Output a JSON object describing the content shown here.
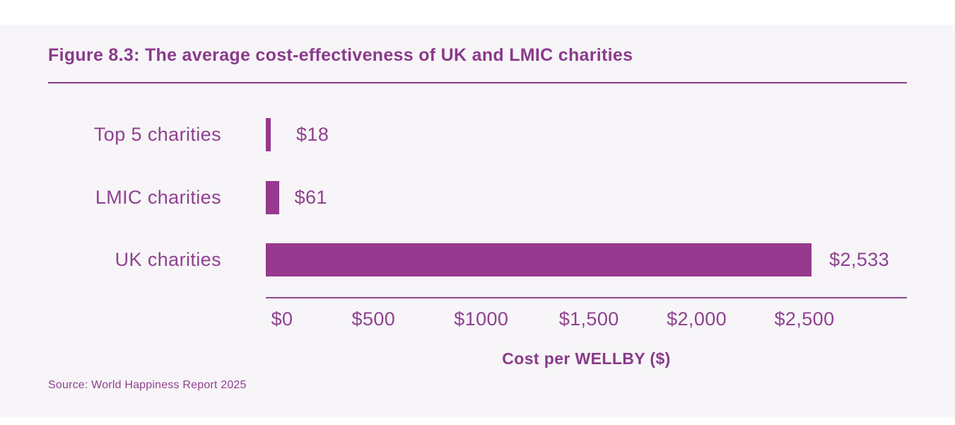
{
  "figure": {
    "title": "Figure 8.3: The average cost-effectiveness of UK and LMIC charities",
    "source": "Source: World Happiness Report 2025"
  },
  "colors": {
    "background": "#f7f5f8",
    "page_margin": "#ffffff",
    "bar": "#97398f",
    "title_text": "#8a3a8b",
    "label_text": "#8f4190",
    "axis_line": "#8f4a93"
  },
  "chart_data": {
    "type": "bar",
    "orientation": "horizontal",
    "title": "Figure 8.3: The average cost-effectiveness of UK and LMIC charities",
    "categories": [
      "Top 5 charities",
      "LMIC charities",
      "UK charities"
    ],
    "values": [
      18,
      61,
      2533
    ],
    "value_labels": [
      "$18",
      "$61",
      "$2,533"
    ],
    "xlabel": "Cost per WELLBY ($)",
    "xlim": [
      0,
      2500
    ],
    "tick_values": [
      0,
      500,
      1000,
      1500,
      2000,
      2500
    ],
    "tick_labels": [
      "$0",
      "$500",
      "$1000",
      "$1,500",
      "$2,000",
      "$2,500"
    ],
    "grid": false,
    "legend": "none"
  }
}
